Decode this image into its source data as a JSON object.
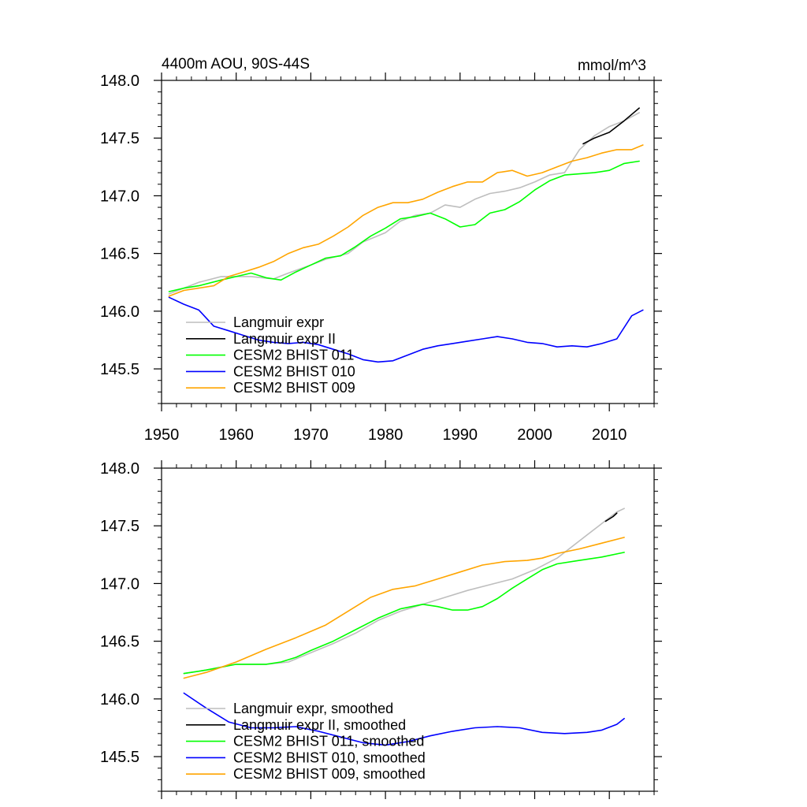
{
  "chart_data": [
    {
      "type": "line",
      "title_left": "4400m AOU, 90S-44S",
      "title_right": "mmol/m^3",
      "xlim": [
        1950,
        2016
      ],
      "ylim": [
        145.2,
        148.0
      ],
      "xticks": [
        1950,
        1960,
        1970,
        1980,
        1990,
        2000,
        2010
      ],
      "yticks": [
        148.0,
        147.5,
        147.0,
        146.5,
        146.0,
        145.5
      ],
      "show_x_tick_labels": true,
      "legend": "bottom-left",
      "series": [
        {
          "name": "Langmuir expr",
          "color": "#bebebe",
          "x": [
            1951,
            1955,
            1958,
            1960,
            1962,
            1965,
            1967,
            1970,
            1972,
            1975,
            1977,
            1980,
            1982,
            1984,
            1986,
            1988,
            1990,
            1992,
            1994,
            1996,
            1998,
            2000,
            2002,
            2004,
            2006,
            2008,
            2010,
            2012,
            2014
          ],
          "y": [
            146.15,
            146.25,
            146.3,
            146.3,
            146.3,
            146.28,
            146.33,
            146.4,
            146.45,
            146.5,
            146.6,
            146.68,
            146.78,
            146.83,
            146.85,
            146.92,
            146.9,
            146.97,
            147.02,
            147.04,
            147.07,
            147.12,
            147.18,
            147.2,
            147.4,
            147.52,
            147.6,
            147.65,
            147.72
          ]
        },
        {
          "name": "Langmuir expr II",
          "color": "#000000",
          "x": [
            2006.5,
            2008,
            2010,
            2012,
            2014
          ],
          "y": [
            147.45,
            147.5,
            147.55,
            147.65,
            147.76
          ]
        },
        {
          "name": "CESM2 BHIST 011",
          "color": "#00ff00",
          "x": [
            1951,
            1953,
            1955,
            1958,
            1960,
            1962,
            1964,
            1966,
            1968,
            1970,
            1972,
            1974,
            1976,
            1978,
            1980,
            1982,
            1984,
            1986,
            1988,
            1990,
            1992,
            1994,
            1996,
            1998,
            2000,
            2002,
            2004,
            2006,
            2008,
            2010,
            2012,
            2014
          ],
          "y": [
            146.17,
            146.2,
            146.22,
            146.27,
            146.3,
            146.33,
            146.29,
            146.27,
            146.34,
            146.4,
            146.46,
            146.48,
            146.56,
            146.65,
            146.72,
            146.8,
            146.82,
            146.85,
            146.8,
            146.73,
            146.75,
            146.85,
            146.88,
            146.95,
            147.05,
            147.13,
            147.18,
            147.19,
            147.2,
            147.22,
            147.28,
            147.3
          ]
        },
        {
          "name": "CESM2 BHIST 010",
          "color": "#0000ff",
          "x": [
            1951,
            1953,
            1955,
            1957,
            1959,
            1961,
            1963,
            1965,
            1967,
            1969,
            1971,
            1973,
            1975,
            1977,
            1979,
            1981,
            1983,
            1985,
            1987,
            1989,
            1991,
            1993,
            1995,
            1997,
            1999,
            2001,
            2003,
            2005,
            2007,
            2009,
            2011,
            2013,
            2014.5
          ],
          "y": [
            146.12,
            146.06,
            146.01,
            145.87,
            145.83,
            145.79,
            145.75,
            145.73,
            145.72,
            145.73,
            145.71,
            145.67,
            145.63,
            145.58,
            145.56,
            145.57,
            145.62,
            145.67,
            145.7,
            145.72,
            145.74,
            145.76,
            145.78,
            145.76,
            145.73,
            145.72,
            145.69,
            145.7,
            145.69,
            145.72,
            145.76,
            145.96,
            146.01
          ]
        },
        {
          "name": "CESM2 BHIST 009",
          "color": "#ffa500",
          "x": [
            1951,
            1953,
            1955,
            1957,
            1959,
            1961,
            1963,
            1965,
            1967,
            1969,
            1971,
            1973,
            1975,
            1977,
            1979,
            1981,
            1983,
            1985,
            1987,
            1989,
            1991,
            1993,
            1995,
            1997,
            1999,
            2001,
            2003,
            2005,
            2007,
            2009,
            2011,
            2013,
            2014.5
          ],
          "y": [
            146.13,
            146.18,
            146.2,
            146.22,
            146.3,
            146.34,
            146.38,
            146.43,
            146.5,
            146.55,
            146.58,
            146.65,
            146.73,
            146.83,
            146.9,
            146.94,
            146.94,
            146.97,
            147.03,
            147.08,
            147.12,
            147.12,
            147.2,
            147.22,
            147.17,
            147.2,
            147.25,
            147.3,
            147.33,
            147.37,
            147.4,
            147.4,
            147.44
          ]
        }
      ]
    },
    {
      "type": "line",
      "xlim": [
        1950,
        2016
      ],
      "ylim": [
        145.2,
        148.0
      ],
      "xticks": [
        1950,
        1960,
        1970,
        1980,
        1990,
        2000,
        2010
      ],
      "yticks": [
        148.0,
        147.5,
        147.0,
        146.5,
        146.0,
        145.5
      ],
      "show_x_tick_labels": false,
      "legend": "bottom-left",
      "series": [
        {
          "name": "Langmuir expr, smoothed",
          "color": "#bebebe",
          "x": [
            1953,
            1956,
            1960,
            1964,
            1967,
            1970,
            1973,
            1976,
            1979,
            1982,
            1985,
            1988,
            1991,
            1994,
            1997,
            2000,
            2003,
            2005,
            2007,
            2009,
            2011,
            2012
          ],
          "y": [
            146.22,
            146.25,
            146.3,
            146.3,
            146.32,
            146.4,
            146.48,
            146.57,
            146.68,
            146.76,
            146.82,
            146.88,
            146.94,
            146.99,
            147.04,
            147.12,
            147.22,
            147.32,
            147.42,
            147.52,
            147.62,
            147.65
          ]
        },
        {
          "name": "Langmuir expr II, smoothed",
          "color": "#000000",
          "x": [
            2009.5,
            2010.5,
            2011
          ],
          "y": [
            147.54,
            147.58,
            147.61
          ]
        },
        {
          "name": "CESM2 BHIST 011, smoothed",
          "color": "#00ff00",
          "x": [
            1953,
            1956,
            1960,
            1962,
            1964,
            1966,
            1968,
            1970,
            1973,
            1976,
            1979,
            1982,
            1985,
            1987,
            1989,
            1991,
            1993,
            1995,
            1997,
            1999,
            2001,
            2003,
            2006,
            2009,
            2012
          ],
          "y": [
            146.22,
            146.25,
            146.3,
            146.3,
            146.3,
            146.32,
            146.36,
            146.42,
            146.5,
            146.6,
            146.7,
            146.78,
            146.82,
            146.8,
            146.77,
            146.77,
            146.8,
            146.87,
            146.96,
            147.04,
            147.12,
            147.17,
            147.2,
            147.23,
            147.27
          ]
        },
        {
          "name": "CESM2 BHIST 010, smoothed",
          "color": "#0000ff",
          "x": [
            1953,
            1956,
            1959,
            1962,
            1965,
            1968,
            1971,
            1974,
            1977,
            1980,
            1983,
            1986,
            1989,
            1992,
            1995,
            1998,
            2001,
            2004,
            2007,
            2009,
            2011,
            2012
          ],
          "y": [
            146.05,
            145.92,
            145.8,
            145.75,
            145.75,
            145.76,
            145.72,
            145.67,
            145.62,
            145.6,
            145.63,
            145.68,
            145.72,
            145.75,
            145.76,
            145.75,
            145.71,
            145.7,
            145.71,
            145.73,
            145.78,
            145.83
          ]
        },
        {
          "name": "CESM2 BHIST 009, smoothed",
          "color": "#ffa500",
          "x": [
            1953,
            1956,
            1960,
            1964,
            1968,
            1972,
            1975,
            1978,
            1981,
            1984,
            1987,
            1990,
            1993,
            1996,
            1999,
            2001,
            2003,
            2006,
            2009,
            2012
          ],
          "y": [
            146.18,
            146.23,
            146.32,
            146.43,
            146.53,
            146.64,
            146.76,
            146.88,
            146.95,
            146.98,
            147.04,
            147.1,
            147.16,
            147.19,
            147.2,
            147.22,
            147.26,
            147.3,
            147.35,
            147.4
          ]
        }
      ]
    }
  ]
}
